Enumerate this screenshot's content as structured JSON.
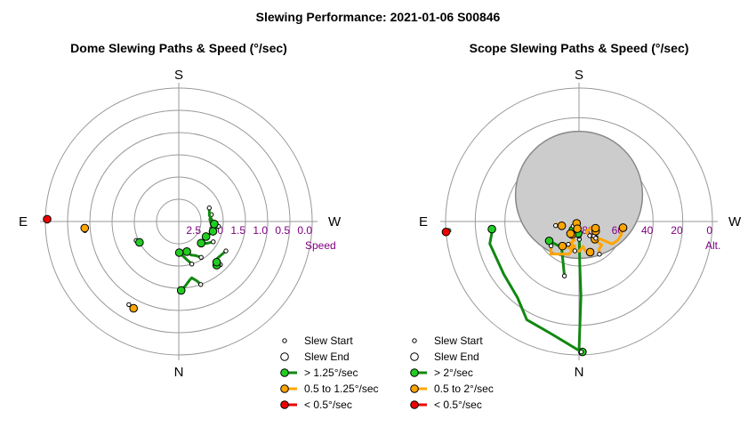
{
  "title": "Slewing Performance: 2021-01-06 S00846",
  "colors": {
    "fast": "#22cc22",
    "fast_line": "#118811",
    "medium": "#ffa500",
    "slow": "#ee0000",
    "ring": "#999999",
    "tick_text": "#800080",
    "obstruction": "#cccccc"
  },
  "chart_data": [
    {
      "type": "scatter",
      "panel": "dome",
      "title": "Dome Slewing Paths & Speed (°/sec)",
      "compass": {
        "top": "S",
        "left": "E",
        "right": "W",
        "bottom": "N"
      },
      "radial_axis": {
        "label": "Speed",
        "ticks": [
          "2.5",
          "2.0",
          "1.5",
          "1.0",
          "0.5",
          "0.0"
        ],
        "rings": [
          2.5,
          2.0,
          1.5,
          1.0,
          0.5
        ],
        "outer": 0.0,
        "center": 3.0
      },
      "legend": {
        "entries": [
          {
            "label": "Slew Start",
            "symbol": "start"
          },
          {
            "label": "Slew End",
            "symbol": "end"
          },
          {
            "label": "> 1.25°/sec",
            "symbol": "fast"
          },
          {
            "label": "0.5 to 1.25°/sec",
            "symbol": "medium"
          },
          {
            "label": "< 0.5°/sec",
            "symbol": "slow"
          }
        ]
      },
      "paths": [
        {
          "speed_class": "fast",
          "points": [
            [
              199.2,
              1.5
            ],
            [
              197.0,
              1.6
            ],
            [
              193.0,
              1.7
            ],
            [
              190.0,
              1.65
            ],
            [
              186.0,
              1.55
            ],
            [
              182.0,
              1.45
            ]
          ]
        },
        {
          "speed_class": "fast",
          "points": [
            [
              197.0,
              2.0
            ],
            [
              193.0,
              2.1
            ],
            [
              188.0,
              2.2
            ],
            [
              185.0,
              2.25
            ],
            [
              181.0,
              2.3
            ]
          ]
        },
        {
          "speed_class": "fast",
          "points": [
            [
              212.0,
              2.05
            ],
            [
              206.0,
              2.15
            ],
            [
              200.0,
              2.2
            ],
            [
              195.0,
              2.3
            ]
          ]
        },
        {
          "speed_class": "fast",
          "points": [
            [
              224.0,
              1.65
            ],
            [
              221.0,
              1.7
            ]
          ]
        },
        {
          "speed_class": "fast",
          "points": [
            [
              238.0,
              1.75
            ],
            [
              226.5,
              1.8
            ],
            [
              223.0,
              1.75
            ]
          ]
        },
        {
          "speed_class": "fast",
          "points": [
            [
              239.5,
              2.1
            ],
            [
              232.0,
              2.2
            ],
            [
              226.0,
              2.3
            ]
          ]
        },
        {
          "speed_class": "fast",
          "points": [
            [
              263.0,
              2.1
            ],
            [
              256.0,
              2.2
            ],
            [
              248.0,
              2.25
            ],
            [
              241.0,
              2.3
            ]
          ]
        },
        {
          "speed_class": "fast",
          "points": [
            [
              282.0,
              2.25
            ],
            [
              274.0,
              2.3
            ],
            [
              262.0,
              2.25
            ],
            [
              254.0,
              2.2
            ]
          ]
        },
        {
          "speed_class": "fast",
          "points": [
            [
              294.0,
              2.25
            ],
            [
              281.0,
              2.3
            ],
            [
              266.0,
              2.2
            ]
          ]
        },
        {
          "speed_class": "fast",
          "points": [
            [
              114.0,
              1.95
            ],
            [
              118.0,
              2.0
            ]
          ]
        },
        {
          "speed_class": "medium",
          "points": [
            [
              149.0,
              0.82
            ],
            [
              152.5,
              0.8
            ]
          ]
        },
        {
          "speed_class": "medium",
          "points": [
            [
              95.5,
              0.88
            ],
            [
              94.0,
              0.88
            ]
          ]
        },
        {
          "speed_class": "slow",
          "points": [
            [
              89.5,
              0.04
            ],
            [
              89.0,
              0.04
            ]
          ]
        }
      ]
    },
    {
      "type": "scatter",
      "panel": "scope",
      "title": "Scope Slewing Paths & Speed (°/sec)",
      "compass": {
        "top": "S",
        "left": "E",
        "right": "W",
        "bottom": "N"
      },
      "radial_axis": {
        "label": "Alt.",
        "ticks": [
          "80",
          "60",
          "40",
          "20",
          "0"
        ],
        "rings": [
          80,
          60,
          40,
          20
        ],
        "outer": 0,
        "center": 90
      },
      "obstruction": {
        "az": 0,
        "alt": 72,
        "radius_deg": 14
      },
      "legend": {
        "entries": [
          {
            "label": "Slew Start",
            "symbol": "start"
          },
          {
            "label": "Slew End",
            "symbol": "end"
          },
          {
            "label": "> 2°/sec",
            "symbol": "fast"
          },
          {
            "label": "0.5 to 2°/sec",
            "symbol": "medium"
          },
          {
            "label": "< 0.5°/sec",
            "symbol": "slow"
          }
        ]
      },
      "paths": [
        {
          "speed_class": "fast",
          "points": [
            [
              181.0,
              78
            ],
            [
              181.0,
              60
            ],
            [
              181.5,
              40
            ],
            [
              180.0,
              3
            ],
            [
              181.5,
              2
            ]
          ]
        },
        {
          "speed_class": "fast",
          "points": [
            [
              181.0,
              2
            ],
            [
              166.0,
              12
            ],
            [
              152.0,
              15
            ],
            [
              141.0,
              24
            ],
            [
              125.0,
              28
            ],
            [
              104.0,
              28
            ],
            [
              96.5,
              31
            ],
            [
              95.0,
              31
            ]
          ]
        },
        {
          "speed_class": "fast",
          "points": [
            [
              165.0,
              52
            ],
            [
              146.0,
              69
            ],
            [
              123.0,
              66
            ]
          ]
        },
        {
          "speed_class": "fast",
          "points": [
            [
              180.0,
              80
            ],
            [
              176.0,
              82
            ]
          ]
        },
        {
          "speed_class": "fast",
          "points": [
            [
              150.0,
              82
            ],
            [
              144.0,
              83
            ]
          ]
        },
        {
          "speed_class": "medium",
          "points": [
            [
              131.0,
              65
            ],
            [
              139.0,
              61
            ],
            [
              163.0,
              67
            ],
            [
              171.0,
              73
            ],
            [
              162.0,
              74
            ],
            [
              165.0,
              71
            ],
            [
              146.0,
              70
            ]
          ]
        },
        {
          "speed_class": "medium",
          "points": [
            [
              155.0,
              73
            ],
            [
              166.0,
              77
            ],
            [
              157.0,
              78
            ],
            [
              152.0,
              80
            ]
          ]
        },
        {
          "speed_class": "medium",
          "points": [
            [
              172.0,
              70
            ],
            [
              181.0,
              70
            ],
            [
              189.0,
              73
            ],
            [
              193.0,
              69
            ],
            [
              200.0,
              68
            ]
          ]
        },
        {
          "speed_class": "medium",
          "points": [
            [
              212.0,
              64
            ],
            [
              216.0,
              67
            ],
            [
              224.0,
              68
            ],
            [
              221.0,
              72
            ],
            [
              215.0,
              73
            ],
            [
              222.0,
              74
            ]
          ]
        },
        {
          "speed_class": "medium",
          "points": [
            [
              226.0,
              76
            ],
            [
              223.0,
              77
            ],
            [
              240.0,
              77
            ]
          ]
        },
        {
          "speed_class": "medium",
          "points": [
            [
              217.0,
              78
            ],
            [
              214.0,
              81
            ],
            [
              222.0,
              82
            ],
            [
              231.0,
              81
            ],
            [
              243.0,
              81
            ],
            [
              248.0,
              78
            ]
          ]
        },
        {
          "speed_class": "medium",
          "points": [
            [
              225.0,
              74
            ],
            [
              230.0,
              72
            ],
            [
              236.0,
              63
            ],
            [
              244.0,
              61
            ],
            [
              253.0,
              60
            ],
            [
              256.0,
              61
            ],
            [
              262.0,
              60
            ]
          ]
        },
        {
          "speed_class": "medium",
          "points": [
            [
              100.0,
              74
            ],
            [
              96.0,
              75
            ],
            [
              104.0,
              78
            ]
          ]
        },
        {
          "speed_class": "medium",
          "points": [
            [
              128.0,
              85
            ],
            [
              125.0,
              86
            ],
            [
              100.0,
              87
            ],
            [
              115.0,
              87
            ],
            [
              127.0,
              88
            ]
          ]
        },
        {
          "speed_class": "medium",
          "points": [
            [
              156.0,
              84
            ],
            [
              142.0,
              86
            ],
            [
              167.0,
              85
            ]
          ]
        },
        {
          "speed_class": "medium",
          "points": [
            [
              149.0,
              81
            ],
            [
              145.0,
              80
            ]
          ]
        },
        {
          "speed_class": "slow",
          "points": [
            [
              94.0,
              2
            ],
            [
              94.5,
              0
            ]
          ]
        }
      ]
    }
  ]
}
